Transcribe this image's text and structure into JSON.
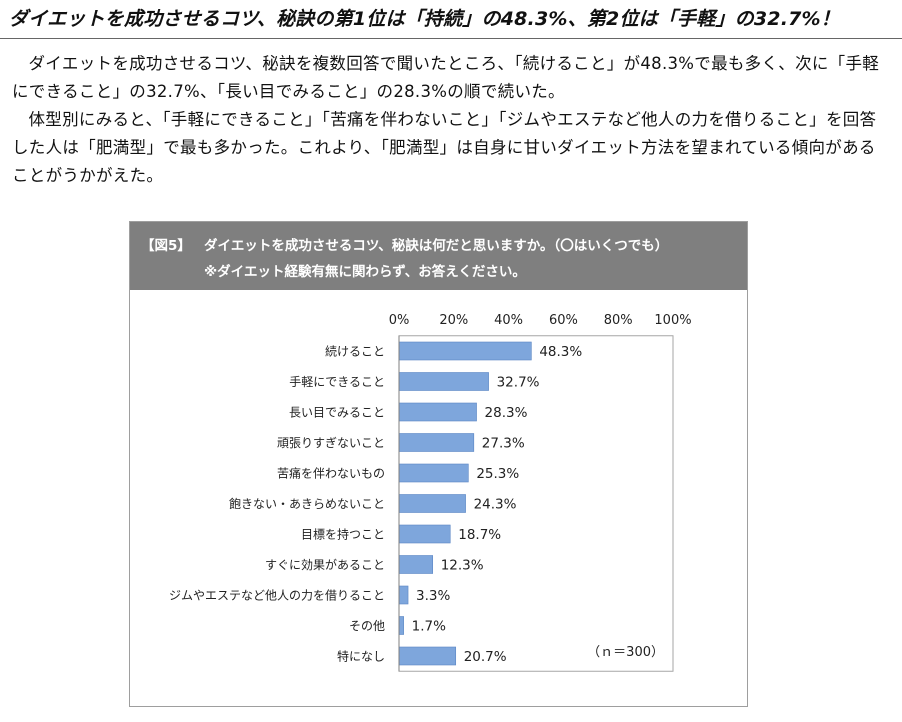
{
  "headline": "ダイエットを成功させるコツ、秘訣の第1位は「持続」の48.3%、第2位は「手軽」の32.7%！",
  "paragraphs": [
    "ダイエットを成功させるコツ、秘訣を複数回答で聞いたところ、「続けること」が48.3%で最も多く、次に「手軽にできること」の32.7%、「長い目でみること」の28.3%の順で続いた。",
    "体型別にみると、「手軽にできること」「苦痛を伴わないこと」「ジムやエステなど他人の力を借りること」を回答した人は「肥満型」で最も多かった。これより、「肥満型」は自身に甘いダイエット方法を望まれている傾向があることがうかがえた。"
  ],
  "figure": {
    "label": "【図5】",
    "title": "ダイエットを成功させるコツ、秘訣は何だと思いますか。（〇はいくつでも）",
    "note": "※ダイエット経験有無に関わらず、お答えください。",
    "header_bg": "#7f7f7f"
  },
  "chart_data": {
    "type": "bar",
    "orientation": "horizontal",
    "categories": [
      "続けること",
      "手軽にできること",
      "長い目でみること",
      "頑張りすぎないこと",
      "苦痛を伴わないもの",
      "飽きない・あきらめないこと",
      "目標を持つこと",
      "すぐに効果があること",
      "ジムやエステなど他人の力を借りること",
      "その他",
      "特になし"
    ],
    "values": [
      48.3,
      32.7,
      28.3,
      27.3,
      25.3,
      24.3,
      18.7,
      12.3,
      3.3,
      1.7,
      20.7
    ],
    "value_labels": [
      "48.3%",
      "32.7%",
      "28.3%",
      "27.3%",
      "25.3%",
      "24.3%",
      "18.7%",
      "12.3%",
      "3.3%",
      "1.7%",
      "20.7%"
    ],
    "xticks": [
      "0%",
      "20%",
      "40%",
      "60%",
      "80%",
      "100%"
    ],
    "xlim": [
      0,
      100
    ],
    "sample_note": "（ｎ＝300）",
    "bar_color": "#7ea6dc",
    "bar_border": "#5b86c4"
  }
}
